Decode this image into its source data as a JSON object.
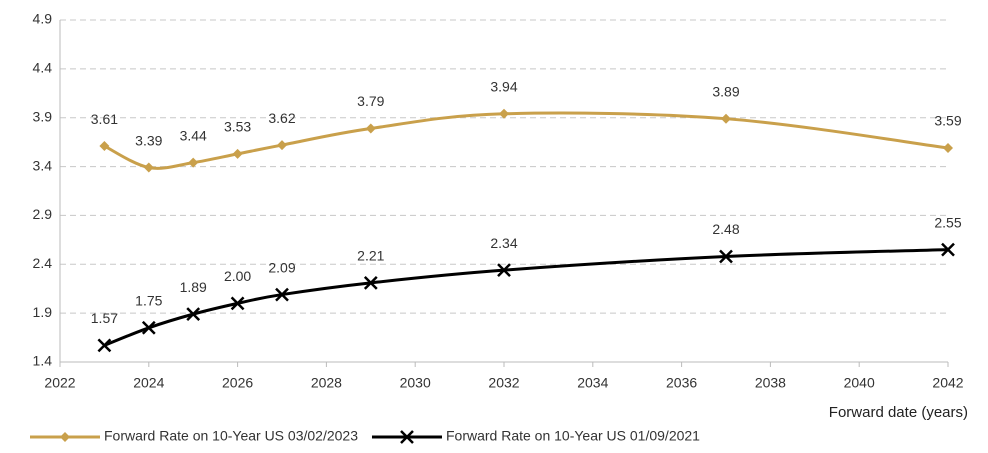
{
  "chart_data": {
    "type": "line",
    "x": [
      2023,
      2024,
      2025,
      2026,
      2027,
      2029,
      2032,
      2037,
      2042
    ],
    "series": [
      {
        "name": "Forward Rate on 10-Year US 03/02/2023",
        "color": "#c9a04b",
        "marker": "diamond",
        "values": [
          3.61,
          3.39,
          3.44,
          3.53,
          3.62,
          3.79,
          3.94,
          3.89,
          3.59
        ]
      },
      {
        "name": "Forward Rate on 10-Year US 01/09/2021",
        "color": "#000000",
        "marker": "x",
        "values": [
          1.57,
          1.75,
          1.89,
          2.0,
          2.09,
          2.21,
          2.34,
          2.48,
          2.55
        ],
        "value_labels": [
          "1.57",
          "1.75",
          "1.89",
          "2.00",
          "2.09",
          "2.21",
          "2.34",
          "2.48",
          "2.55"
        ]
      }
    ],
    "x_label": "Forward date (years)",
    "xlim": [
      2022,
      2042
    ],
    "xticks": [
      2022,
      2024,
      2026,
      2028,
      2030,
      2032,
      2034,
      2036,
      2038,
      2040,
      2042
    ],
    "ylim": [
      1.4,
      4.9
    ],
    "yticks": [
      1.4,
      1.9,
      2.4,
      2.9,
      3.4,
      3.9,
      4.4,
      4.9
    ],
    "grid": true,
    "legend": "bottom"
  }
}
